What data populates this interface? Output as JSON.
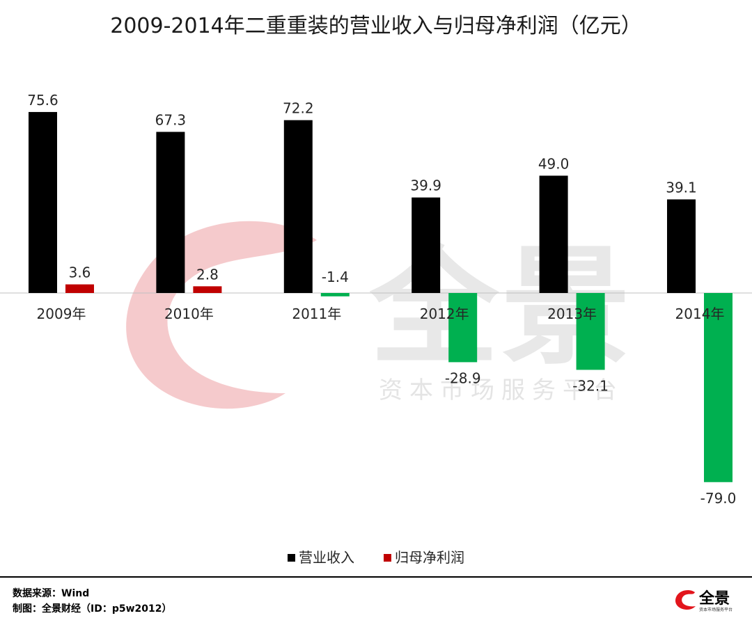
{
  "chart_data": {
    "type": "bar",
    "title": "2009-2014年二重重装的营业收入与归母净利润（亿元）",
    "categories": [
      "2009年",
      "2010年",
      "2011年",
      "2012年",
      "2013年",
      "2014年"
    ],
    "series": [
      {
        "name": "营业收入",
        "color": "#000000",
        "values": [
          75.6,
          67.3,
          72.2,
          39.9,
          49.0,
          39.1
        ]
      },
      {
        "name": "归母净利润",
        "color": "#c00000",
        "negative_color": "#00b050",
        "values": [
          3.6,
          2.8,
          -1.4,
          -28.9,
          -32.1,
          -79.0
        ]
      }
    ],
    "data_labels": {
      "营业收入": [
        "75.6",
        "67.3",
        "72.2",
        "39.9",
        "49.0",
        "39.1"
      ],
      "归母净利润": [
        "3.6",
        "2.8",
        "-1.4",
        "-28.9",
        "-32.1",
        "-79.0"
      ]
    },
    "xlabel": "",
    "ylabel": "",
    "ylim": [
      -79.0,
      75.6
    ],
    "grid": false,
    "legend": "bottom-center"
  },
  "footer": {
    "source": "数据来源：Wind",
    "maker": "制图：全景财经（ID：p5w2012）"
  },
  "watermark": {
    "brand": "全景",
    "tagline": "资本市场服务平台"
  },
  "brand_logo": {
    "text": "全景",
    "tagline": "资本市场服务平台"
  }
}
